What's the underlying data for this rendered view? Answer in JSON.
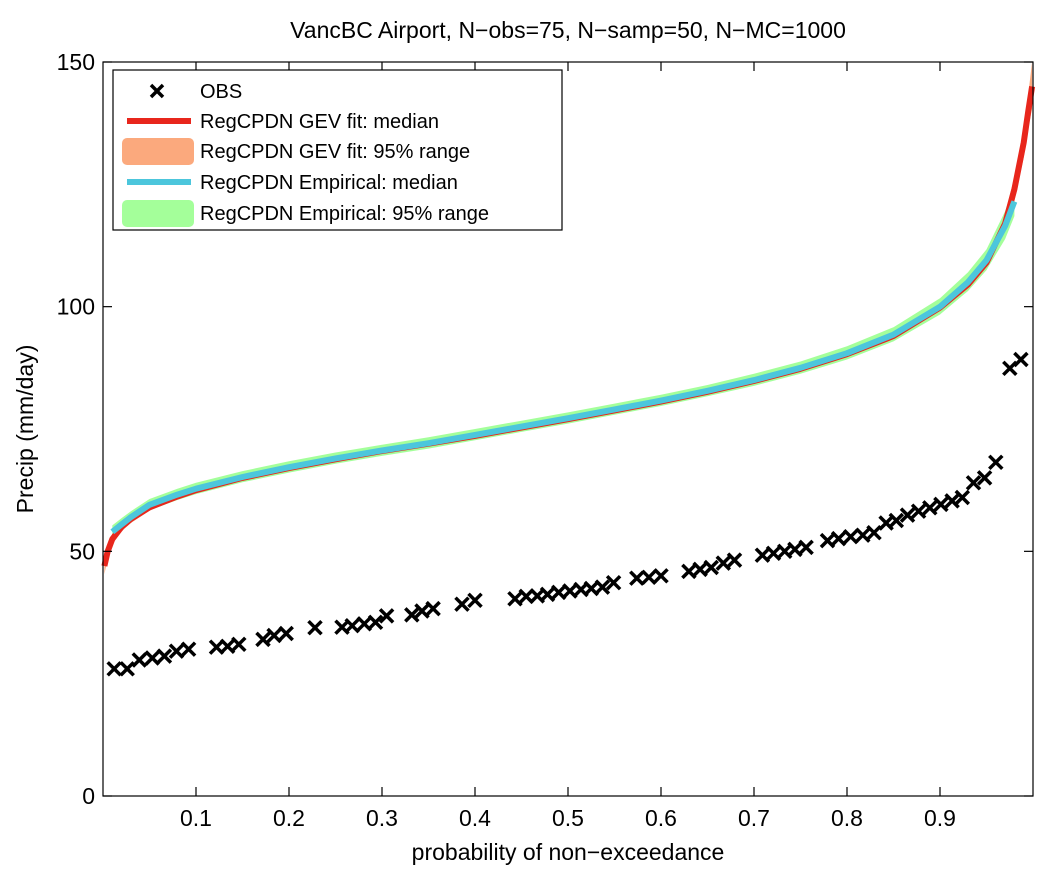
{
  "chart_data": {
    "type": "line",
    "title": "VancBC Airport, N−obs=75, N−samp=50, N−MC=1000",
    "xlabel": "probability of non−exceedance",
    "ylabel": "Precip (mm/day)",
    "xlim": [
      0,
      1
    ],
    "ylim": [
      0,
      150
    ],
    "xticks": [
      0.1,
      0.2,
      0.3,
      0.4,
      0.5,
      0.6,
      0.7,
      0.8,
      0.9
    ],
    "xtick_labels": [
      "0.1",
      "0.2",
      "0.3",
      "0.4",
      "0.5",
      "0.6",
      "0.7",
      "0.8",
      "0.9"
    ],
    "yticks": [
      0,
      50,
      100,
      150
    ],
    "ytick_labels": [
      "0",
      "50",
      "100",
      "150"
    ],
    "grid": false,
    "legend_position": "top-left",
    "legend": [
      {
        "label": "OBS",
        "kind": "marker",
        "color": "#000000"
      },
      {
        "label": "RegCPDN GEV fit: median",
        "kind": "line",
        "color": "#e8261c"
      },
      {
        "label": "RegCPDN GEV fit: 95% range",
        "kind": "band",
        "color": "#fba97d"
      },
      {
        "label": "RegCPDN Empirical: median",
        "kind": "line",
        "color": "#4cc6dc"
      },
      {
        "label": "RegCPDN Empirical: 95% range",
        "kind": "band",
        "color": "#a4ff9a"
      }
    ],
    "series": [
      {
        "name": "OBS",
        "type": "scatter",
        "marker": "x",
        "color": "#000000",
        "points": [
          [
            0.012,
            26.0
          ],
          [
            0.026,
            26.0
          ],
          [
            0.039,
            27.8
          ],
          [
            0.053,
            28.2
          ],
          [
            0.066,
            28.6
          ],
          [
            0.079,
            29.6
          ],
          [
            0.092,
            30.0
          ],
          [
            0.122,
            30.4
          ],
          [
            0.134,
            30.6
          ],
          [
            0.146,
            31.0
          ],
          [
            0.172,
            32.0
          ],
          [
            0.184,
            32.8
          ],
          [
            0.197,
            33.2
          ],
          [
            0.228,
            34.4
          ],
          [
            0.257,
            34.5
          ],
          [
            0.268,
            34.8
          ],
          [
            0.281,
            35.2
          ],
          [
            0.293,
            35.5
          ],
          [
            0.305,
            36.8
          ],
          [
            0.332,
            37.0
          ],
          [
            0.343,
            37.8
          ],
          [
            0.355,
            38.3
          ],
          [
            0.386,
            39.2
          ],
          [
            0.4,
            40.0
          ],
          [
            0.443,
            40.3
          ],
          [
            0.455,
            40.8
          ],
          [
            0.467,
            40.9
          ],
          [
            0.478,
            41.2
          ],
          [
            0.49,
            41.6
          ],
          [
            0.502,
            41.9
          ],
          [
            0.514,
            42.2
          ],
          [
            0.525,
            42.4
          ],
          [
            0.537,
            42.7
          ],
          [
            0.549,
            43.6
          ],
          [
            0.574,
            44.5
          ],
          [
            0.587,
            44.7
          ],
          [
            0.6,
            45.0
          ],
          [
            0.63,
            45.9
          ],
          [
            0.642,
            46.3
          ],
          [
            0.654,
            46.7
          ],
          [
            0.667,
            47.6
          ],
          [
            0.679,
            48.2
          ],
          [
            0.709,
            49.2
          ],
          [
            0.721,
            49.6
          ],
          [
            0.733,
            50.0
          ],
          [
            0.744,
            50.4
          ],
          [
            0.756,
            50.8
          ],
          [
            0.779,
            52.2
          ],
          [
            0.791,
            52.6
          ],
          [
            0.804,
            53.0
          ],
          [
            0.817,
            53.3
          ],
          [
            0.829,
            53.8
          ],
          [
            0.842,
            55.8
          ],
          [
            0.853,
            56.3
          ],
          [
            0.865,
            57.4
          ],
          [
            0.877,
            58.2
          ],
          [
            0.889,
            58.9
          ],
          [
            0.901,
            59.6
          ],
          [
            0.913,
            60.3
          ],
          [
            0.924,
            61.0
          ],
          [
            0.936,
            64.0
          ],
          [
            0.948,
            65.0
          ],
          [
            0.96,
            68.2
          ],
          [
            0.975,
            87.4
          ],
          [
            0.987,
            89.2
          ]
        ]
      },
      {
        "name": "RegCPDN GEV fit: median",
        "type": "line",
        "color": "#e8261c",
        "points": [
          [
            0.0015,
            47.0
          ],
          [
            0.005,
            50.0
          ],
          [
            0.01,
            52.5
          ],
          [
            0.02,
            55.0
          ],
          [
            0.03,
            56.6
          ],
          [
            0.05,
            59.0
          ],
          [
            0.08,
            61.2
          ],
          [
            0.1,
            62.5
          ],
          [
            0.15,
            65.0
          ],
          [
            0.2,
            67.0
          ],
          [
            0.25,
            68.8
          ],
          [
            0.3,
            70.5
          ],
          [
            0.35,
            72.0
          ],
          [
            0.4,
            73.6
          ],
          [
            0.45,
            75.3
          ],
          [
            0.5,
            77.0
          ],
          [
            0.55,
            78.8
          ],
          [
            0.6,
            80.6
          ],
          [
            0.65,
            82.6
          ],
          [
            0.7,
            84.8
          ],
          [
            0.75,
            87.3
          ],
          [
            0.8,
            90.3
          ],
          [
            0.85,
            94.0
          ],
          [
            0.9,
            99.8
          ],
          [
            0.93,
            104.5
          ],
          [
            0.95,
            109.0
          ],
          [
            0.97,
            117.0
          ],
          [
            0.98,
            124.0
          ],
          [
            0.99,
            133.5
          ],
          [
            0.995,
            140.0
          ],
          [
            0.999,
            145.0
          ]
        ]
      },
      {
        "name": "RegCPDN GEV fit: 95% range",
        "type": "band",
        "color": "#fba97d",
        "x": [
          0.0015,
          0.005,
          0.01,
          0.02,
          0.03,
          0.05,
          0.08,
          0.1,
          0.15,
          0.2,
          0.25,
          0.3,
          0.35,
          0.4,
          0.45,
          0.5,
          0.55,
          0.6,
          0.65,
          0.7,
          0.75,
          0.8,
          0.85,
          0.9,
          0.93,
          0.95,
          0.97,
          0.98,
          0.99,
          0.995,
          0.999
        ],
        "lower": [
          45.3,
          48.6,
          51.4,
          54.1,
          55.8,
          58.3,
          60.6,
          61.9,
          64.4,
          66.4,
          68.2,
          69.9,
          71.4,
          73.0,
          74.7,
          76.4,
          78.2,
          80.0,
          82.0,
          84.2,
          86.6,
          89.5,
          93.1,
          98.7,
          103.2,
          107.5,
          115.0,
          121.6,
          130.5,
          136.5,
          140.5
        ],
        "upper": [
          48.5,
          51.3,
          53.6,
          55.9,
          57.4,
          59.7,
          61.8,
          63.1,
          65.6,
          67.6,
          69.4,
          71.1,
          72.6,
          74.2,
          75.9,
          77.6,
          79.4,
          81.2,
          83.2,
          85.4,
          88.0,
          91.1,
          94.9,
          100.9,
          105.8,
          110.5,
          119.0,
          126.5,
          136.5,
          143.5,
          150.0
        ]
      },
      {
        "name": "RegCPDN Empirical: median",
        "type": "line",
        "color": "#4cc6dc",
        "points": [
          [
            0.01,
            54.0
          ],
          [
            0.02,
            55.5
          ],
          [
            0.03,
            57.0
          ],
          [
            0.05,
            59.5
          ],
          [
            0.08,
            61.6
          ],
          [
            0.1,
            62.8
          ],
          [
            0.15,
            65.2
          ],
          [
            0.2,
            67.2
          ],
          [
            0.25,
            69.0
          ],
          [
            0.3,
            70.6
          ],
          [
            0.35,
            72.1
          ],
          [
            0.4,
            73.8
          ],
          [
            0.45,
            75.5
          ],
          [
            0.5,
            77.2
          ],
          [
            0.55,
            79.0
          ],
          [
            0.6,
            80.8
          ],
          [
            0.65,
            82.8
          ],
          [
            0.7,
            85.0
          ],
          [
            0.75,
            87.5
          ],
          [
            0.8,
            90.5
          ],
          [
            0.85,
            94.3
          ],
          [
            0.9,
            100.0
          ],
          [
            0.93,
            105.0
          ],
          [
            0.95,
            109.5
          ],
          [
            0.97,
            116.5
          ],
          [
            0.98,
            121.5
          ]
        ]
      },
      {
        "name": "RegCPDN Empirical: 95% range",
        "type": "band",
        "color": "#a4ff9a",
        "x": [
          0.01,
          0.02,
          0.03,
          0.05,
          0.08,
          0.1,
          0.15,
          0.2,
          0.25,
          0.3,
          0.35,
          0.4,
          0.45,
          0.5,
          0.55,
          0.6,
          0.65,
          0.7,
          0.75,
          0.8,
          0.85,
          0.9,
          0.93,
          0.95,
          0.97,
          0.98
        ],
        "lower": [
          52.8,
          54.4,
          55.9,
          58.4,
          60.5,
          61.7,
          64.1,
          66.1,
          67.9,
          69.5,
          71.0,
          72.7,
          74.4,
          76.1,
          77.9,
          79.7,
          81.7,
          83.8,
          86.3,
          89.2,
          92.9,
          98.4,
          103.2,
          107.5,
          113.8,
          118.5
        ],
        "upper": [
          55.3,
          56.8,
          58.2,
          60.7,
          62.8,
          64.0,
          66.4,
          68.4,
          70.2,
          71.8,
          73.3,
          75.0,
          76.7,
          78.4,
          80.2,
          82.0,
          84.0,
          86.3,
          88.8,
          91.9,
          95.8,
          101.7,
          107.0,
          111.7,
          119.5,
          125.0
        ]
      }
    ]
  }
}
